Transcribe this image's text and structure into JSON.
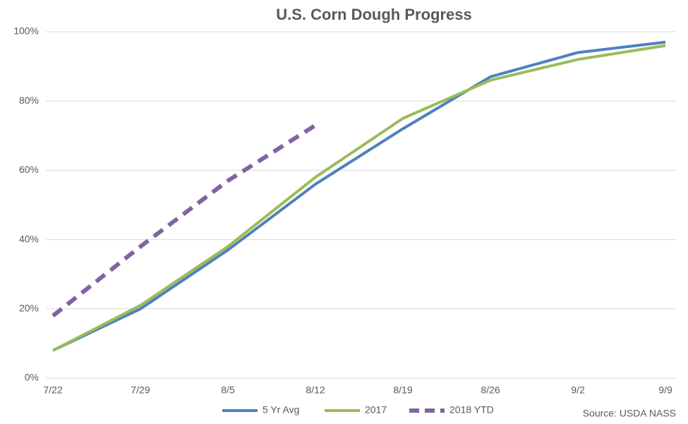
{
  "chart_data": {
    "type": "line",
    "title": "U.S. Corn Dough Progress",
    "categories": [
      "7/22",
      "7/29",
      "8/5",
      "8/12",
      "8/19",
      "8/26",
      "9/2",
      "9/9"
    ],
    "series": [
      {
        "name": "5 Yr Avg",
        "color": "#4f81bd",
        "values": [
          8,
          20,
          37,
          56,
          72,
          87,
          94,
          97
        ]
      },
      {
        "name": "2017",
        "color": "#9bbb59",
        "values": [
          8,
          21,
          38,
          58,
          75,
          86,
          92,
          96
        ]
      },
      {
        "name": "2018 YTD",
        "color": "#8064a2",
        "dashed": true,
        "values": [
          18,
          38,
          57,
          73,
          null,
          null,
          null,
          null
        ]
      }
    ],
    "ylim": [
      0,
      100
    ],
    "yticks": [
      {
        "value": 0,
        "label": "0%"
      },
      {
        "value": 20,
        "label": "20%"
      },
      {
        "value": 40,
        "label": "40%"
      },
      {
        "value": 60,
        "label": "60%"
      },
      {
        "value": 80,
        "label": "80%"
      },
      {
        "value": 100,
        "label": "100%"
      }
    ],
    "grid": true,
    "legend": "bottom",
    "source": "Source: USDA NASS"
  }
}
